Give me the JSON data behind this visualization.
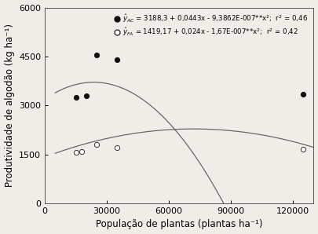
{
  "title": "",
  "xlabel": "População de plantas (plantas ha⁻¹)",
  "ylabel": "Produtividade de algodão (kg ha⁻¹)",
  "xlim": [
    0,
    130000
  ],
  "ylim": [
    0,
    6000
  ],
  "xticks": [
    0,
    30000,
    60000,
    90000,
    120000
  ],
  "yticks": [
    0,
    1500,
    3000,
    4500,
    6000
  ],
  "AC_points_x": [
    15000,
    20000,
    25000,
    35000,
    125000
  ],
  "AC_points_y": [
    3250,
    3300,
    4550,
    4400,
    3350
  ],
  "FA_points_x": [
    15000,
    18000,
    25000,
    35000,
    125000
  ],
  "FA_points_y": [
    1560,
    1600,
    1800,
    1700,
    1660
  ],
  "AC_eq": {
    "a": 3188.3,
    "b": 0.0443,
    "c": -9.3862e-07
  },
  "FA_eq": {
    "a": 1419.17,
    "b": 0.024,
    "c": -1.67e-07
  },
  "legend_AC": "$\\hat{y}_{AC}$ = 3188,3 + 0,0443x - 9,3862E-007**x$^2$;  r$^2$ = 0,46",
  "legend_FA": "$\\hat{y}_{FA}$ = 1419,17 + 0,024x - 1,67E-007**x$^2$;  r$^2$ = 0,42",
  "point_color_AC": "#111111",
  "point_color_FA": "#ffffff",
  "line_color": "#666666",
  "background_color": "#f0ede8",
  "fontsize": 8.5,
  "tick_fontsize": 8
}
